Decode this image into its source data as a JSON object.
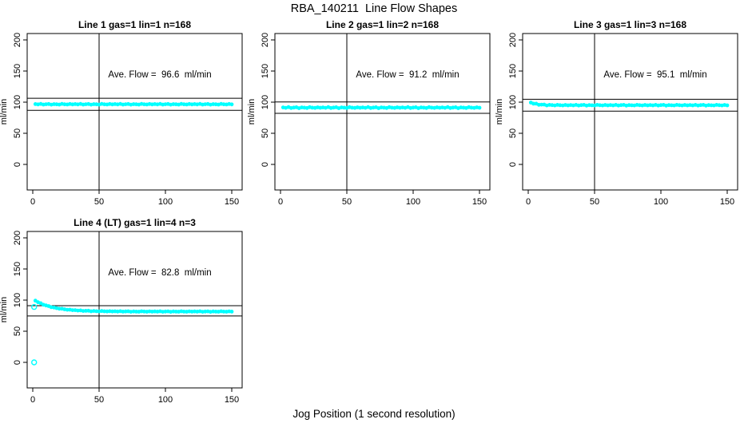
{
  "title": "RBA_140211  Line Flow Shapes",
  "xlabel": "Jog Position (1 second resolution)",
  "colors": {
    "points": "#00FFFF",
    "lines": "#000000",
    "background": "#FFFFFF"
  },
  "chart_data": [
    {
      "type": "scatter",
      "title": "Line 1 gas=1 lin=1 n=168",
      "annotation": "Ave. Flow =  96.6  ml/min",
      "ave_flow": 96.6,
      "ylabel": "ml/min",
      "x_ticks": [
        0,
        50,
        100,
        150
      ],
      "y_ticks": [
        0,
        50,
        100,
        150,
        200
      ],
      "xlim": [
        -4,
        158
      ],
      "ylim": [
        -45,
        215
      ],
      "grid": false,
      "vline_x": 50,
      "hlines": [
        106.3,
        86.9
      ],
      "x_start": 2,
      "x_step": 2,
      "y_values": [
        96.9,
        96.4,
        97.2,
        96.1,
        96.7,
        97.1,
        96.0,
        96.8,
        96.5,
        96.2,
        97.2,
        96.6,
        96.3,
        97.0,
        96.4,
        96.9,
        96.4,
        97.2,
        96.1,
        96.7,
        97.1,
        96.0,
        96.8,
        96.5,
        96.2,
        97.2,
        96.6,
        96.3,
        97.0,
        96.4,
        96.9,
        96.4,
        97.2,
        96.1,
        96.7,
        97.1,
        96.0,
        96.8,
        96.5,
        96.2,
        97.2,
        96.6,
        96.3,
        97.0,
        96.4,
        96.9,
        96.4,
        97.2,
        96.1,
        96.7,
        97.1,
        96.0,
        96.8,
        96.5,
        96.2,
        97.2,
        96.6,
        96.3,
        97.0,
        96.4,
        96.9,
        96.4,
        97.2,
        96.1,
        96.7,
        97.1,
        96.0,
        96.8,
        96.5,
        96.2,
        97.2,
        96.6,
        96.3,
        97.0,
        96.4
      ],
      "outliers": []
    },
    {
      "type": "scatter",
      "title": "Line 2 gas=1 lin=2 n=168",
      "annotation": "Ave. Flow =  91.2  ml/min",
      "ave_flow": 91.2,
      "ylabel": "ml/min",
      "x_ticks": [
        0,
        50,
        100,
        150
      ],
      "y_ticks": [
        0,
        50,
        100,
        150,
        200
      ],
      "xlim": [
        -4,
        158
      ],
      "ylim": [
        -45,
        215
      ],
      "grid": false,
      "vline_x": 50,
      "hlines": [
        100.3,
        82.1
      ],
      "x_start": 2,
      "x_step": 2,
      "y_values": [
        91.6,
        90.9,
        92.0,
        90.6,
        91.3,
        91.8,
        90.4,
        91.5,
        91.1,
        90.7,
        91.9,
        91.2,
        90.8,
        91.7,
        91.0,
        91.6,
        90.9,
        92.0,
        90.6,
        91.3,
        91.8,
        90.4,
        91.5,
        91.1,
        90.7,
        91.9,
        91.2,
        90.8,
        91.7,
        91.0,
        91.6,
        90.9,
        92.0,
        90.6,
        91.3,
        91.8,
        90.4,
        91.5,
        91.1,
        90.7,
        91.9,
        91.2,
        90.8,
        91.7,
        91.0,
        91.6,
        90.9,
        92.0,
        90.6,
        91.3,
        91.8,
        90.4,
        91.5,
        91.1,
        90.7,
        91.9,
        91.2,
        90.8,
        91.7,
        91.0,
        91.6,
        90.9,
        92.0,
        90.6,
        91.3,
        91.8,
        90.4,
        91.5,
        91.1,
        90.7,
        91.9,
        91.2,
        90.8,
        91.7,
        91.0
      ],
      "outliers": []
    },
    {
      "type": "scatter",
      "title": "Line 3 gas=1 lin=3 n=168",
      "annotation": "Ave. Flow =  95.1  ml/min",
      "ave_flow": 95.1,
      "ylabel": "ml/min",
      "x_ticks": [
        0,
        50,
        100,
        150
      ],
      "y_ticks": [
        0,
        50,
        100,
        150,
        200
      ],
      "xlim": [
        -4,
        158
      ],
      "ylim": [
        -45,
        215
      ],
      "grid": false,
      "vline_x": 50,
      "hlines": [
        104.6,
        85.6
      ],
      "x_start": 2,
      "x_step": 2,
      "y_values": [
        99.4,
        97.6,
        97.6,
        95.8,
        96.0,
        96.1,
        94.8,
        95.6,
        95.2,
        94.8,
        95.7,
        95.1,
        94.8,
        95.5,
        94.9,
        95.4,
        94.9,
        95.7,
        94.6,
        95.2,
        95.6,
        94.5,
        95.3,
        95.0,
        94.7,
        95.7,
        95.1,
        94.8,
        95.5,
        94.9,
        95.4,
        94.9,
        95.7,
        94.6,
        95.2,
        95.6,
        94.5,
        95.3,
        95.0,
        94.7,
        95.7,
        95.1,
        94.8,
        95.5,
        94.9,
        95.4,
        94.9,
        95.7,
        94.6,
        95.2,
        95.6,
        94.5,
        95.3,
        95.0,
        94.7,
        95.7,
        95.1,
        94.8,
        95.5,
        94.9,
        95.4,
        94.9,
        95.7,
        94.6,
        95.2,
        95.6,
        94.5,
        95.3,
        95.0,
        94.7,
        95.7,
        95.1,
        94.8,
        95.5,
        94.9
      ],
      "outliers": []
    },
    {
      "type": "scatter",
      "title": "Line 4 (LT) gas=1 lin=4 n=3",
      "annotation": "Ave. Flow =  82.8  ml/min",
      "ave_flow": 82.8,
      "ylabel": "ml/min",
      "x_ticks": [
        0,
        50,
        100,
        150
      ],
      "y_ticks": [
        0,
        50,
        100,
        150,
        200
      ],
      "xlim": [
        -4,
        158
      ],
      "ylim": [
        -45,
        215
      ],
      "grid": false,
      "vline_x": 50,
      "hlines": [
        91.1,
        74.5
      ],
      "x_start": 2,
      "x_step": 2,
      "y_values": [
        99.1,
        96.5,
        95.0,
        92.6,
        91.4,
        90.4,
        88.6,
        88.1,
        87.1,
        86.1,
        86.1,
        85.2,
        84.5,
        84.6,
        83.8,
        83.8,
        83.2,
        83.5,
        82.6,
        82.8,
        82.9,
        82.1,
        82.5,
        82.2,
        81.9,
        82.4,
        82.0,
        81.8,
        82.2,
        81.8,
        82.0,
        81.7,
        82.2,
        81.5,
        81.8,
        82.0,
        81.3,
        81.8,
        81.6,
        81.4,
        82.0,
        81.7,
        81.4,
        81.9,
        81.5,
        81.8,
        81.5,
        82.0,
        81.3,
        81.7,
        81.9,
        81.2,
        81.8,
        81.6,
        81.4,
        82.0,
        81.6,
        81.4,
        81.9,
        81.5,
        81.8,
        81.5,
        82.0,
        81.3,
        81.7,
        81.9,
        81.2,
        81.8,
        81.6,
        81.4,
        82.0,
        81.6,
        81.4,
        81.9,
        81.5
      ],
      "outliers": [
        [
          1,
          89
        ],
        [
          1,
          0
        ]
      ]
    }
  ]
}
